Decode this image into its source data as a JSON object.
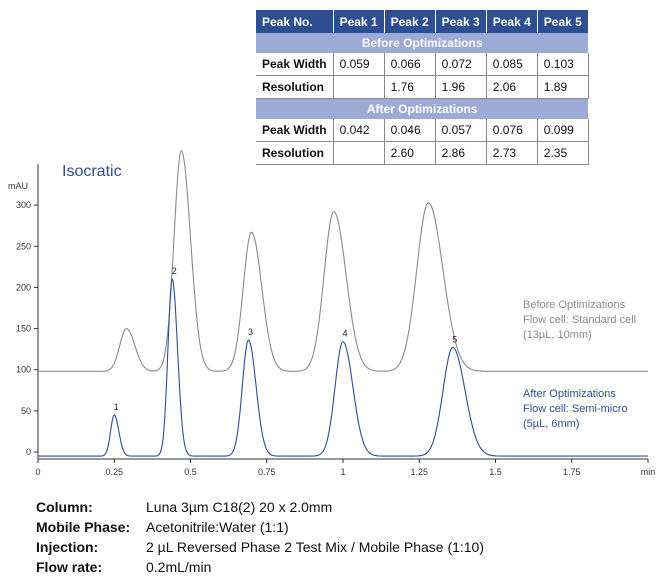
{
  "chart_data": {
    "type": "line",
    "title": "Isocratic",
    "xlabel": "min",
    "ylabel": "mAU",
    "xlim": [
      0,
      2
    ],
    "ylim": [
      -5,
      340
    ],
    "x_ticks": [
      "0",
      "0.25",
      "0.5",
      "0.75",
      "1",
      "1.25",
      "1.5",
      "1.75",
      "min"
    ],
    "y_ticks": [
      "0",
      "50",
      "100",
      "150",
      "200",
      "250",
      "300"
    ],
    "grid": false,
    "series": [
      {
        "name": "Before Optimizations",
        "description": [
          "Before Optimizations",
          "Flow cell: Standard cell",
          "(13µL, 10mm)"
        ],
        "color": "#8a8a8a",
        "baseline": 98,
        "peaks": [
          {
            "t": 0.29,
            "height": 52
          },
          {
            "t": 0.47,
            "height": 268
          },
          {
            "t": 0.7,
            "height": 169
          },
          {
            "t": 0.97,
            "height": 194
          },
          {
            "t": 1.28,
            "height": 205
          }
        ]
      },
      {
        "name": "After Optimizations",
        "description": [
          "After Optimizations",
          "Flow cell: Semi-micro",
          "(5µL, 6mm)"
        ],
        "color": "#2d4e92",
        "baseline": -5,
        "peaks": [
          {
            "t": 0.25,
            "height": 50,
            "label": "1"
          },
          {
            "t": 0.44,
            "height": 215,
            "label": "2"
          },
          {
            "t": 0.69,
            "height": 141,
            "label": "3"
          },
          {
            "t": 1.0,
            "height": 139,
            "label": "4"
          },
          {
            "t": 1.36,
            "height": 132,
            "label": "5"
          }
        ]
      }
    ]
  },
  "table": {
    "headers": [
      "Peak No.",
      "Peak 1",
      "Peak 2",
      "Peak 3",
      "Peak 4",
      "Peak 5"
    ],
    "sections": [
      {
        "title": "Before Optimizations",
        "rows": [
          {
            "label": "Peak Width",
            "values": [
              "0.059",
              "0.066",
              "0.072",
              "0.085",
              "0.103"
            ]
          },
          {
            "label": "Resolution",
            "values": [
              "",
              "1.76",
              "1.96",
              "2.06",
              "1.89"
            ]
          }
        ]
      },
      {
        "title": "After Optimizations",
        "rows": [
          {
            "label": "Peak Width",
            "values": [
              "0.042",
              "0.046",
              "0.057",
              "0.076",
              "0.099"
            ]
          },
          {
            "label": "Resolution",
            "values": [
              "",
              "2.60",
              "2.86",
              "2.73",
              "2.35"
            ]
          }
        ]
      }
    ]
  },
  "conditions": [
    {
      "label": "Column:",
      "value": "Luna 3µm C18(2) 20 x 2.0mm"
    },
    {
      "label": "Mobile Phase:",
      "value": "Acetonitrile:Water (1:1)"
    },
    {
      "label": "Injection:",
      "value": "2 µL Reversed Phase 2 Test  Mix  /  Mobile Phase (1:10)"
    },
    {
      "label": "Flow rate:",
      "value": "0.2mL/min"
    }
  ]
}
